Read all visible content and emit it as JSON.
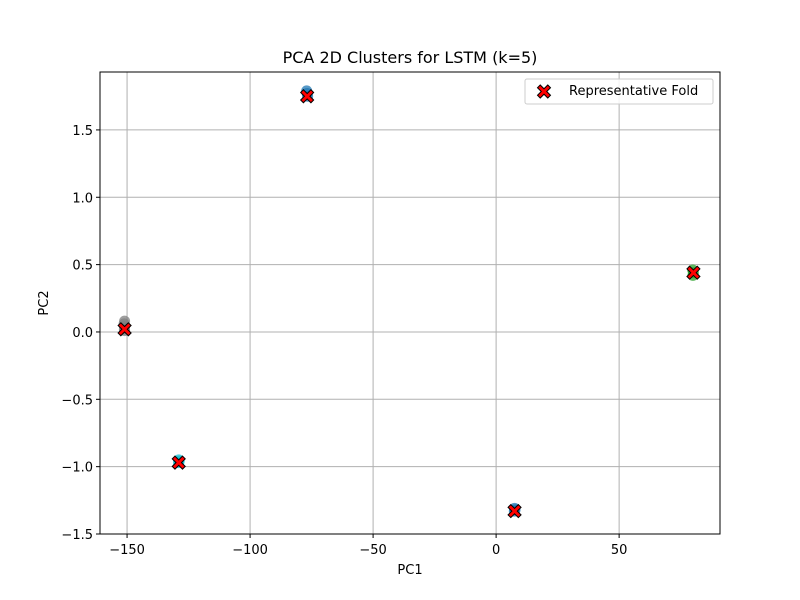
{
  "chart_data": {
    "type": "scatter",
    "title": "PCA 2D Clusters for LSTM (k=5)",
    "xlabel": "PC1",
    "ylabel": "PC2",
    "xlim": [
      -161,
      91
    ],
    "ylim": [
      -1.5,
      1.93
    ],
    "x_ticks": [
      -150,
      -100,
      -50,
      0,
      50
    ],
    "x_tick_labels": [
      "−150",
      "−100",
      "−50",
      "0",
      "50"
    ],
    "y_ticks": [
      -1.5,
      -1.0,
      -0.5,
      0.0,
      0.5,
      1.0,
      1.5
    ],
    "y_tick_labels": [
      "−1.5",
      "−1.0",
      "−0.5",
      "0.0",
      "0.5",
      "1.0",
      "1.5"
    ],
    "grid": true,
    "legend_position": "top-right",
    "clusters": [
      {
        "color": "#1f77b4",
        "points": [
          [
            -77,
            1.79
          ],
          [
            -76.8,
            1.77
          ],
          [
            -76.6,
            1.75
          ]
        ]
      },
      {
        "color": "#7f7f7f",
        "points": [
          [
            -151,
            0.08
          ],
          [
            -151.2,
            0.06
          ],
          [
            -151,
            0.04
          ],
          [
            -151.1,
            0.02
          ],
          [
            -151,
            0.01
          ]
        ]
      },
      {
        "color": "#2ca02c",
        "points": [
          [
            80,
            0.42
          ],
          [
            80.2,
            0.44
          ],
          [
            79.9,
            0.46
          ]
        ]
      },
      {
        "color": "#17becf",
        "points": [
          [
            -129,
            -0.95
          ],
          [
            -128.8,
            -0.96
          ],
          [
            -129.1,
            -0.97
          ]
        ]
      },
      {
        "color": "#1f77b4",
        "points": [
          [
            7.5,
            -1.31
          ],
          [
            7.7,
            -1.32
          ],
          [
            7.4,
            -1.33
          ]
        ]
      }
    ],
    "series": [
      {
        "name": "Representative Fold",
        "marker": "X",
        "color": "#ff0000",
        "edge_color": "#000000",
        "points": [
          [
            -76.8,
            1.75
          ],
          [
            -151,
            0.02
          ],
          [
            80.2,
            0.44
          ],
          [
            -129,
            -0.97
          ],
          [
            7.5,
            -1.33
          ]
        ]
      }
    ]
  }
}
